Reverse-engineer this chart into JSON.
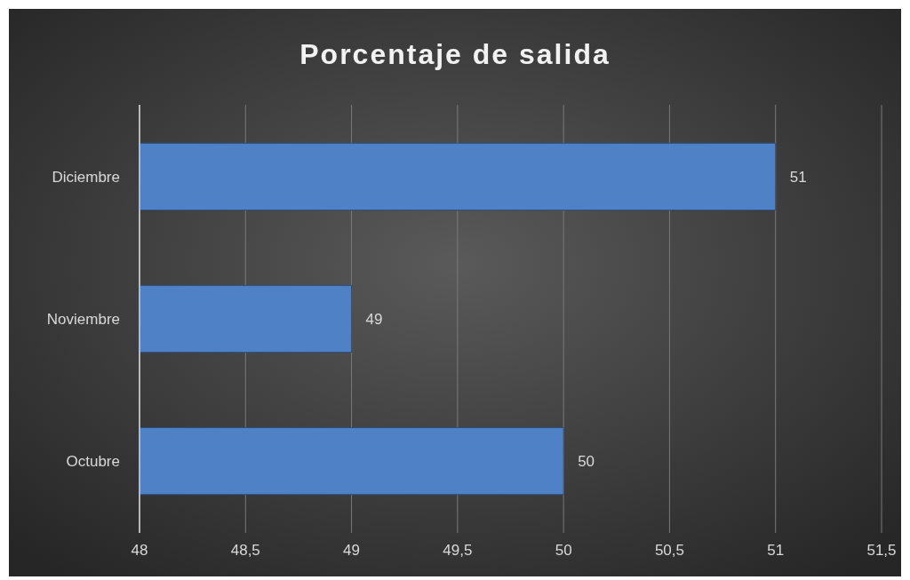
{
  "chart_data": {
    "type": "bar",
    "orientation": "horizontal",
    "title": "Porcentaje de salida",
    "categories": [
      "Diciembre",
      "Noviembre",
      "Octubre"
    ],
    "values": [
      51,
      49,
      50
    ],
    "color": "#4f81c7",
    "xlim": [
      48,
      51.5
    ],
    "xticks": [
      48,
      {
        "value": 48.5,
        "label": "48,5"
      },
      49,
      {
        "value": 49.5,
        "label": "49,5"
      },
      50,
      {
        "value": 50.5,
        "label": "50,5"
      },
      51,
      {
        "value": 51.5,
        "label": "51,5"
      }
    ],
    "grid": "x",
    "data_labels": true
  }
}
